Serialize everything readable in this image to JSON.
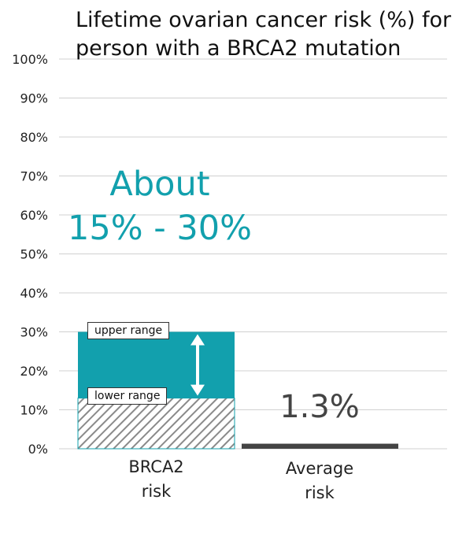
{
  "chart_data": {
    "type": "bar",
    "title": "Lifetime ovarian cancer risk (%) for person with a BRCA2 mutation",
    "categories": [
      "BRCA2 risk",
      "Average risk"
    ],
    "y_ticks": [
      "0%",
      "10%",
      "20%",
      "30%",
      "40%",
      "50%",
      "60%",
      "70%",
      "80%",
      "90%",
      "100%"
    ],
    "ylim": [
      0,
      100
    ],
    "grid": true,
    "bars": [
      {
        "category": "BRCA2 risk",
        "lower": 13,
        "upper": 30,
        "color_upper": "#12a0ad",
        "color_lower_pattern": "#8a8a8a"
      },
      {
        "category": "Average risk",
        "value": 1.3,
        "color": "#444444"
      }
    ],
    "annotations": {
      "upper_label": "upper range",
      "lower_label": "lower range",
      "range_text_line1": "About",
      "range_text_line2": "15% - 30%",
      "average_value_label": "1.3%"
    },
    "category_lines": [
      [
        "BRCA2",
        "risk"
      ],
      [
        "Average",
        "risk"
      ]
    ]
  }
}
